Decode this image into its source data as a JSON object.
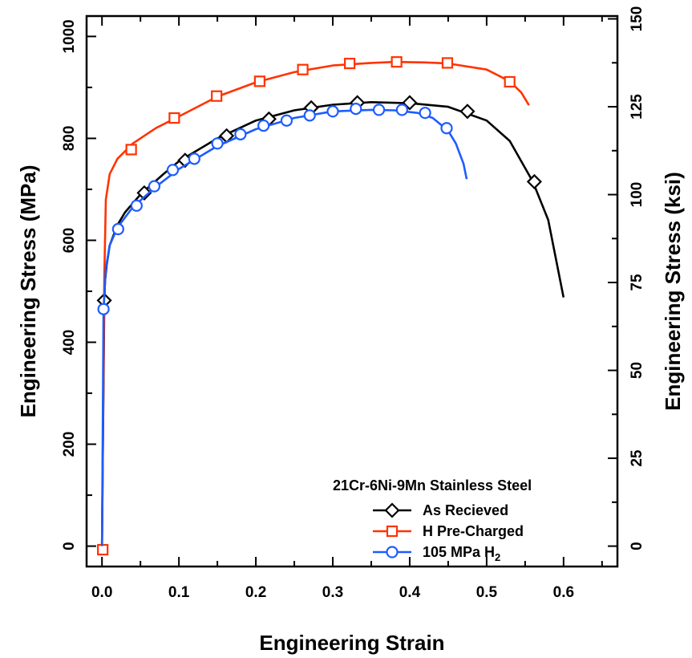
{
  "chart_data": {
    "type": "line",
    "xlabel": "Engineering Strain",
    "ylabel": "Engineering Stress (MPa)",
    "y2label": "Engineering Stress (ksi)",
    "xlim": [
      -0.02,
      0.67
    ],
    "ylim": [
      -40,
      1040
    ],
    "y2lim": [
      -5.8,
      150.8
    ],
    "x_ticks": [
      "0.0",
      "0.1",
      "0.2",
      "0.3",
      "0.4",
      "0.5",
      "0.6"
    ],
    "y_ticks": [
      "0",
      "200",
      "400",
      "600",
      "800",
      "1000"
    ],
    "y2_ticks": [
      "0",
      "25",
      "50",
      "75",
      "100",
      "125",
      "150"
    ],
    "grid": false,
    "legend_title": "21Cr-6Ni-9Mn Stainless Steel",
    "legend_position": "bottom-right",
    "series": [
      {
        "name": "As Recieved",
        "color": "#000000",
        "marker": "diamond",
        "x": [
          0,
          0.003,
          0.004,
          0.006,
          0.01,
          0.02,
          0.03,
          0.05,
          0.08,
          0.1,
          0.15,
          0.2,
          0.25,
          0.3,
          0.35,
          0.4,
          0.45,
          0.5,
          0.53,
          0.56,
          0.58,
          0.6
        ],
        "y": [
          0,
          482,
          520,
          550,
          590,
          630,
          655,
          690,
          730,
          755,
          800,
          835,
          855,
          866,
          871,
          869,
          862,
          835,
          795,
          715,
          640,
          488
        ],
        "marker_x": [
          0.003,
          0.055,
          0.108,
          0.162,
          0.217,
          0.272,
          0.332,
          0.4,
          0.475,
          0.562
        ],
        "marker_y": [
          482,
          693,
          757,
          805,
          838,
          860,
          870,
          870,
          853,
          715
        ]
      },
      {
        "name": "H Pre-Charged",
        "color": "#ff3300",
        "marker": "square",
        "x": [
          0,
          0.003,
          0.005,
          0.01,
          0.02,
          0.04,
          0.07,
          0.1,
          0.15,
          0.2,
          0.25,
          0.3,
          0.35,
          0.38,
          0.42,
          0.45,
          0.5,
          0.53,
          0.545,
          0.555
        ],
        "y": [
          -7,
          530,
          680,
          730,
          760,
          790,
          820,
          843,
          882,
          910,
          930,
          943,
          948,
          950,
          949,
          947,
          935,
          912,
          890,
          865
        ],
        "marker_x": [
          0.001,
          0.038,
          0.094,
          0.149,
          0.205,
          0.261,
          0.322,
          0.383,
          0.449,
          0.53
        ],
        "marker_y": [
          -7,
          778,
          840,
          883,
          912,
          935,
          947,
          950,
          948,
          911
        ]
      },
      {
        "name": "105 MPa H",
        "subscript": "2",
        "color": "#1e5cff",
        "marker": "circle",
        "x": [
          0,
          0.002,
          0.005,
          0.01,
          0.02,
          0.04,
          0.07,
          0.1,
          0.15,
          0.2,
          0.25,
          0.3,
          0.35,
          0.38,
          0.41,
          0.43,
          0.45,
          0.46,
          0.47,
          0.474
        ],
        "y": [
          0,
          465,
          545,
          590,
          625,
          665,
          705,
          740,
          785,
          818,
          840,
          853,
          856,
          855,
          850,
          840,
          815,
          790,
          750,
          720
        ],
        "marker_x": [
          0.002,
          0.021,
          0.045,
          0.068,
          0.092,
          0.12,
          0.15,
          0.18,
          0.21,
          0.24,
          0.27,
          0.3,
          0.33,
          0.36,
          0.39,
          0.42,
          0.448
        ],
        "marker_y": [
          465,
          622,
          668,
          706,
          738,
          760,
          790,
          808,
          825,
          835,
          845,
          853,
          858,
          856,
          856,
          850,
          820
        ]
      }
    ]
  }
}
